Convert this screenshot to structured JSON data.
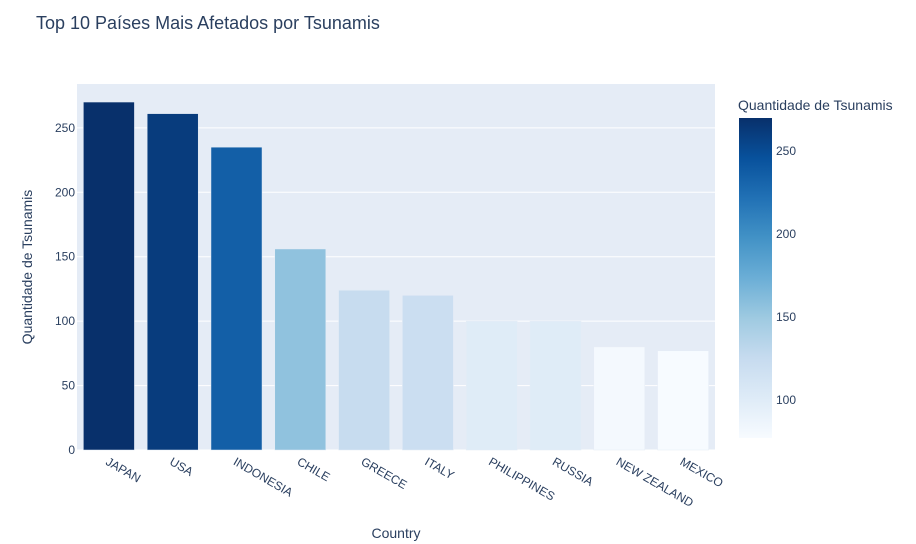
{
  "chart_data": {
    "type": "bar",
    "title": "Top 10 Países Mais Afetados por Tsunamis",
    "xlabel": "Country",
    "ylabel": "Quantidade de Tsunamis",
    "categories": [
      "JAPAN",
      "USA",
      "INDONESIA",
      "CHILE",
      "GREECE",
      "ITALY",
      "PHILIPPINES",
      "RUSSIA",
      "NEW ZEALAND",
      "MEXICO"
    ],
    "values": [
      270,
      261,
      235,
      156,
      124,
      120,
      100,
      100,
      80,
      77
    ],
    "ylim": [
      0,
      284
    ],
    "yticks": [
      0,
      50,
      100,
      150,
      200,
      250
    ],
    "grid": true,
    "colorbar": {
      "title": "Quantidade de Tsunamis",
      "ticks": [
        100,
        150,
        200,
        250
      ],
      "range": [
        77,
        270
      ],
      "colorscale": "Blues"
    },
    "colors": {
      "plot_bg": "#e5ecf6",
      "grid": "#ffffff",
      "text": "#2a3f5f"
    }
  }
}
